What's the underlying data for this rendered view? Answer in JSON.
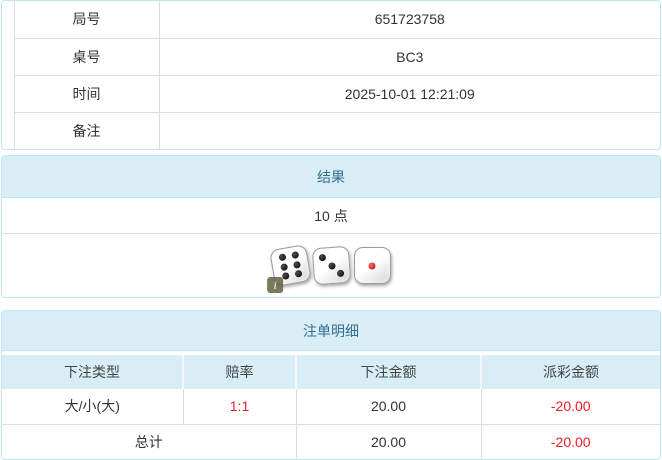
{
  "info_table": {
    "rows": [
      {
        "label": "局号",
        "value": "651723758"
      },
      {
        "label": "桌号",
        "value": "BC3"
      },
      {
        "label": "时间",
        "value": "2025-10-01 12:21:09"
      },
      {
        "label": "备注",
        "value": ""
      }
    ]
  },
  "result_panel": {
    "title": "结果",
    "points": "10 点",
    "dice": [
      6,
      3,
      1
    ],
    "info_badge": "i"
  },
  "bets_panel": {
    "title": "注单明细",
    "columns": [
      "下注类型",
      "赔率",
      "下注金额",
      "派彩金额"
    ],
    "rows": [
      {
        "type": "大/小(大)",
        "odds": "1:1",
        "bet": "20.00",
        "payout": "-20.00"
      }
    ],
    "total": {
      "label": "总计",
      "bet": "20.00",
      "payout": "-20.00"
    }
  },
  "colors": {
    "panel_border": "#bce8f1",
    "heading_bg": "#d9edf7",
    "heading_text": "#31708f",
    "row_border": "#dddddd",
    "negative_text": "#ed1c24"
  }
}
